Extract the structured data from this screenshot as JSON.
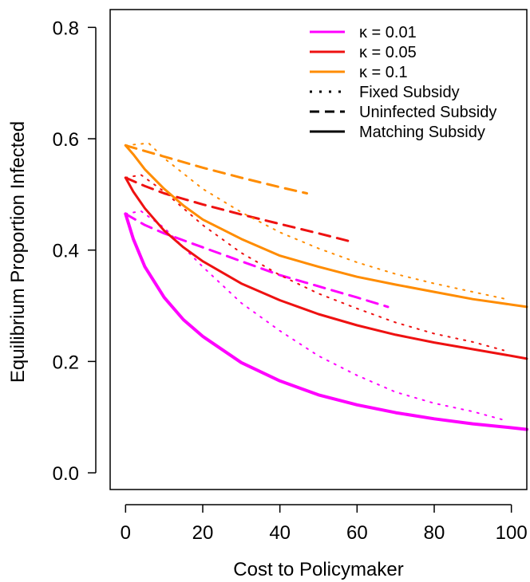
{
  "chart_data": {
    "type": "line",
    "xlabel": "Cost to Policymaker",
    "ylabel": "Equilibrium Proportion Infected",
    "xlim": [
      -4,
      104
    ],
    "ylim": [
      -0.03,
      0.832
    ],
    "xticks": [
      0,
      20,
      40,
      60,
      80,
      100
    ],
    "yticks": [
      0.0,
      0.2,
      0.4,
      0.6,
      0.8
    ],
    "xtick_labels": [
      "0",
      "20",
      "40",
      "60",
      "80",
      "100"
    ],
    "ytick_labels": [
      "0.0",
      "0.2",
      "0.4",
      "0.6",
      "0.8"
    ],
    "grid": false,
    "legend_position": "top-right",
    "colors": {
      "k001": "#ff00ff",
      "k005": "#ee1111",
      "k01": "#ff8c00",
      "text": "#000000"
    },
    "legend": [
      {
        "label": "κ = 0.01",
        "color": "#ff00ff",
        "style": "solid"
      },
      {
        "label": "κ = 0.05",
        "color": "#ee1111",
        "style": "solid"
      },
      {
        "label": "κ = 0.1",
        "color": "#ff8c00",
        "style": "solid"
      },
      {
        "label": "Fixed Subsidy",
        "color": "#000000",
        "style": "dotted"
      },
      {
        "label": "Uninfected Subsidy",
        "color": "#000000",
        "style": "dashed"
      },
      {
        "label": "Matching Subsidy",
        "color": "#000000",
        "style": "solid"
      }
    ],
    "series": [
      {
        "kappa": "κ = 0.01",
        "subsidy": "Matching Subsidy",
        "color": "#ff00ff",
        "style": "solid",
        "width": 4,
        "x": [
          0,
          2,
          5,
          10,
          15,
          20,
          30,
          40,
          50,
          60,
          70,
          80,
          90,
          100,
          104
        ],
        "y": [
          0.465,
          0.42,
          0.37,
          0.315,
          0.275,
          0.245,
          0.198,
          0.165,
          0.14,
          0.122,
          0.108,
          0.097,
          0.088,
          0.081,
          0.078
        ]
      },
      {
        "kappa": "κ = 0.01",
        "subsidy": "Fixed Subsidy",
        "color": "#ff00ff",
        "style": "dotted",
        "width": 2,
        "x": [
          0,
          4,
          10,
          20,
          30,
          40,
          50,
          60,
          70,
          80,
          90,
          98
        ],
        "y": [
          0.465,
          0.47,
          0.44,
          0.37,
          0.305,
          0.255,
          0.21,
          0.175,
          0.145,
          0.125,
          0.11,
          0.095
        ]
      },
      {
        "kappa": "κ = 0.01",
        "subsidy": "Uninfected Subsidy",
        "color": "#ff00ff",
        "style": "dashed",
        "width": 3,
        "x": [
          0,
          5,
          10,
          20,
          30,
          40,
          50,
          60,
          68
        ],
        "y": [
          0.465,
          0.445,
          0.43,
          0.405,
          0.38,
          0.355,
          0.335,
          0.315,
          0.298
        ]
      },
      {
        "kappa": "κ = 0.05",
        "subsidy": "Matching Subsidy",
        "color": "#ee1111",
        "style": "solid",
        "width": 3,
        "x": [
          0,
          2,
          5,
          10,
          15,
          20,
          30,
          40,
          50,
          60,
          70,
          80,
          90,
          100,
          104
        ],
        "y": [
          0.53,
          0.505,
          0.475,
          0.435,
          0.405,
          0.38,
          0.34,
          0.31,
          0.285,
          0.265,
          0.248,
          0.234,
          0.222,
          0.21,
          0.205
        ]
      },
      {
        "kappa": "κ = 0.05",
        "subsidy": "Fixed Subsidy",
        "color": "#ee1111",
        "style": "dotted",
        "width": 2,
        "x": [
          0,
          4,
          10,
          20,
          30,
          40,
          50,
          60,
          70,
          80,
          90,
          98
        ],
        "y": [
          0.53,
          0.535,
          0.505,
          0.445,
          0.395,
          0.355,
          0.322,
          0.295,
          0.27,
          0.25,
          0.235,
          0.22
        ]
      },
      {
        "kappa": "κ = 0.05",
        "subsidy": "Uninfected Subsidy",
        "color": "#ee1111",
        "style": "dashed",
        "width": 3,
        "x": [
          0,
          5,
          10,
          20,
          30,
          40,
          50,
          58
        ],
        "y": [
          0.53,
          0.515,
          0.502,
          0.482,
          0.464,
          0.447,
          0.43,
          0.416
        ]
      },
      {
        "kappa": "κ = 0.1",
        "subsidy": "Matching Subsidy",
        "color": "#ff8c00",
        "style": "solid",
        "width": 3,
        "x": [
          0,
          2,
          5,
          10,
          15,
          20,
          30,
          40,
          50,
          60,
          70,
          80,
          90,
          100,
          104
        ],
        "y": [
          0.588,
          0.572,
          0.545,
          0.51,
          0.48,
          0.455,
          0.42,
          0.39,
          0.37,
          0.352,
          0.338,
          0.325,
          0.312,
          0.302,
          0.298
        ]
      },
      {
        "kappa": "κ = 0.1",
        "subsidy": "Fixed Subsidy",
        "color": "#ff8c00",
        "style": "dotted",
        "width": 2,
        "x": [
          0,
          6,
          10,
          20,
          30,
          40,
          50,
          60,
          70,
          80,
          90,
          98
        ],
        "y": [
          0.588,
          0.592,
          0.565,
          0.51,
          0.468,
          0.432,
          0.403,
          0.378,
          0.357,
          0.34,
          0.325,
          0.313
        ]
      },
      {
        "kappa": "κ = 0.1",
        "subsidy": "Uninfected Subsidy",
        "color": "#ff8c00",
        "style": "dashed",
        "width": 3,
        "x": [
          0,
          5,
          10,
          20,
          30,
          40,
          47
        ],
        "y": [
          0.588,
          0.578,
          0.568,
          0.548,
          0.53,
          0.513,
          0.502
        ]
      }
    ]
  }
}
